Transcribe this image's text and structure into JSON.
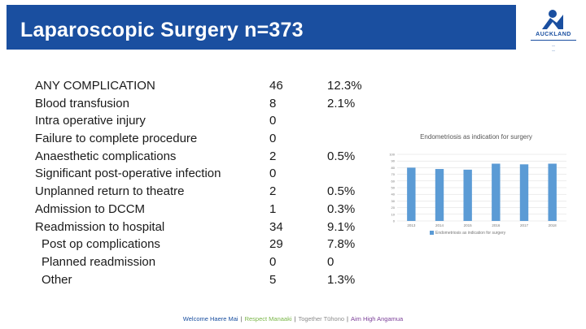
{
  "slide": {
    "title": "Laparoscopic Surgery n=373"
  },
  "logo": {
    "word": "AUCKLAND",
    "line1": "—",
    "line2": "—"
  },
  "rows": [
    {
      "label": "ANY COMPLICATION",
      "count": "46",
      "percent": "12.3%",
      "indent": false
    },
    {
      "label": "Blood transfusion",
      "count": "8",
      "percent": "2.1%",
      "indent": false
    },
    {
      "label": "Intra operative injury",
      "count": "0",
      "percent": "",
      "indent": false
    },
    {
      "label": "Failure to complete procedure",
      "count": "0",
      "percent": "",
      "indent": false
    },
    {
      "label": "Anaesthetic complications",
      "count": "2",
      "percent": "0.5%",
      "indent": false
    },
    {
      "label": "Significant post-operative infection",
      "count": "0",
      "percent": "",
      "indent": false
    },
    {
      "label": "Unplanned return to theatre",
      "count": "2",
      "percent": "0.5%",
      "indent": false
    },
    {
      "label": "Admission to DCCM",
      "count": "1",
      "percent": "0.3%",
      "indent": false
    },
    {
      "label": "Readmission to hospital",
      "count": "34",
      "percent": "9.1%",
      "indent": false
    },
    {
      "label": "Post op complications",
      "count": "29",
      "percent": "7.8%",
      "indent": true
    },
    {
      "label": "Planned readmission",
      "count": "0",
      "percent": "0",
      "indent": true
    },
    {
      "label": "Other",
      "count": "5",
      "percent": "1.3%",
      "indent": true
    }
  ],
  "chart_data": {
    "type": "bar",
    "title": "Endometriosis as indication for surgery",
    "categories": [
      "2013",
      "2014",
      "2015",
      "2016",
      "2017",
      "2018"
    ],
    "series": [
      {
        "name": "Endometriosis as indication for surgery",
        "values": [
          80,
          78,
          77,
          86,
          85,
          86
        ]
      }
    ],
    "ylim": [
      0,
      100
    ],
    "yticks": [
      "0",
      "10",
      "20",
      "30",
      "40",
      "50",
      "60",
      "70",
      "80",
      "90",
      "100"
    ],
    "grid": true,
    "legend": "bottom",
    "color": "#5b9bd5"
  },
  "footer": [
    {
      "text": "Welcome Haere Mai",
      "color": "#1a4fa0"
    },
    {
      "text": "Respect Manaaki",
      "color": "#7ab648"
    },
    {
      "text": "Together Tūhono",
      "color": "#8c8c8c"
    },
    {
      "text": "Aim High Angamua",
      "color": "#7b3f98"
    }
  ],
  "footer_separator": "|",
  "colors": {
    "banner": "#1a4fa0",
    "title_text": "#ffffff",
    "accent": "#1a4fa0"
  }
}
